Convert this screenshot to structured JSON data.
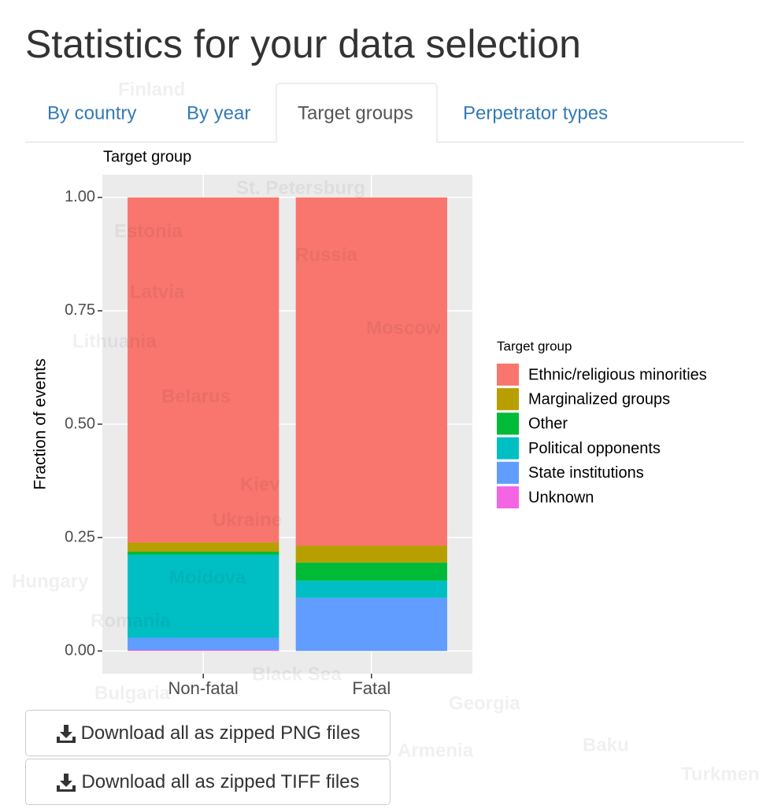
{
  "header": {
    "title": "Statistics for your data selection"
  },
  "tabs": [
    "By country",
    "By year",
    "Target groups",
    "Perpetrator types"
  ],
  "active_tab": 2,
  "chart_data": {
    "type": "stacked_bar",
    "title": "Target group",
    "y_label": "Fraction of events",
    "legend_title": "Target group",
    "legend": "right",
    "grid": true,
    "categories": [
      "Non-fatal",
      "Fatal"
    ],
    "series": [
      {
        "name": "Ethnic/religious minorities",
        "color": "#F8766D",
        "values": [
          0.761,
          0.768
        ]
      },
      {
        "name": "Marginalized groups",
        "color": "#B79F00",
        "values": [
          0.02,
          0.037
        ]
      },
      {
        "name": "Other",
        "color": "#00BA38",
        "values": [
          0.007,
          0.04
        ]
      },
      {
        "name": "Political opponents",
        "color": "#00BFC4",
        "values": [
          0.183,
          0.038
        ]
      },
      {
        "name": "State institutions",
        "color": "#619CFF",
        "values": [
          0.027,
          0.117
        ]
      },
      {
        "name": "Unknown",
        "color": "#F564E3",
        "values": [
          0.002,
          0
        ]
      }
    ],
    "ylim": [
      -0.05,
      1.05
    ],
    "yticks": [
      {
        "value": 0,
        "label": "0.00"
      },
      {
        "value": 0.25,
        "label": "0.25"
      },
      {
        "value": 0.5,
        "label": "0.50"
      },
      {
        "value": 0.75,
        "label": "0.75"
      },
      {
        "value": 1,
        "label": "1.00"
      }
    ]
  },
  "buttons": [
    "Download all as zipped PNG files",
    "Download all as zipped TIFF files"
  ],
  "background_map_labels": [
    "Finland",
    "St. Petersburg",
    "Estonia",
    "Russia",
    "Latvia",
    "Moscow",
    "Lithuania",
    "Belarus",
    "Kiev",
    "Ukraine",
    "Moldova",
    "Hungary",
    "Romania",
    "Black Sea",
    "Bulgaria",
    "Georgia",
    "Armenia",
    "Baku",
    "Turkmen"
  ]
}
